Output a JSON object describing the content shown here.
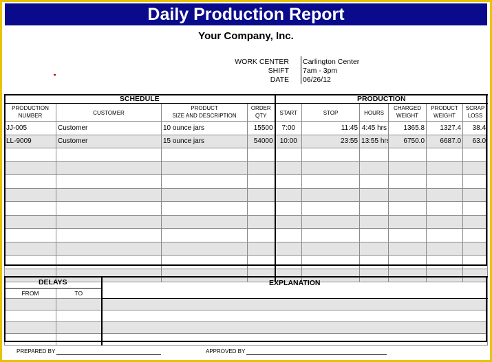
{
  "title": "Daily Production Report",
  "company": "Your Company, Inc.",
  "info": [
    {
      "label": "WORK CENTER",
      "value": "Carlington Center"
    },
    {
      "label": "SHIFT",
      "value": "7am - 3pm"
    },
    {
      "label": "DATE",
      "value": "06/26/12"
    }
  ],
  "groups": {
    "schedule": "SCHEDULE",
    "production": "PRODUCTION"
  },
  "columns": {
    "prod_number": [
      "PRODUCTION",
      "NUMBER"
    ],
    "customer": "CUSTOMER",
    "product": [
      "PRODUCT",
      "SIZE AND DESCRIPTION"
    ],
    "order_qty": [
      "ORDER",
      "QTY"
    ],
    "start": "START",
    "stop": "STOP",
    "hours": "HOURS",
    "charged_weight": [
      "CHARGED",
      "WEIGHT"
    ],
    "product_weight": [
      "PRODUCT",
      "WEIGHT"
    ],
    "scrap_loss": [
      "SCRAP",
      "LOSS"
    ]
  },
  "rows": [
    {
      "number": "JJ-005",
      "customer": "Customer",
      "product": "10 ounce jars",
      "qty": "15500",
      "start": "7:00",
      "stop": "11:45",
      "hours": "4:45 hrs",
      "charged": "1365.8",
      "pweight": "1327.4",
      "scrap": "38.4"
    },
    {
      "number": "LL-9009",
      "customer": "Customer",
      "product": "15 ounce jars",
      "qty": "54000",
      "start": "10:00",
      "stop": "23:55",
      "hours": "13:55 hrs",
      "charged": "6750.0",
      "pweight": "6687.0",
      "scrap": "63.0"
    }
  ],
  "empty_row_count": 10,
  "delays": {
    "title": "DELAYS",
    "explanation": "EXPLANATION",
    "from": "FROM",
    "to": "TO",
    "row_count": 4
  },
  "signatures": {
    "prepared": "PREPARED BY",
    "approved": "APPROVED BY"
  },
  "colors": {
    "title_bg": "#0a0a8c",
    "border": "#e8c400",
    "stripe": "#e4e4e4"
  }
}
